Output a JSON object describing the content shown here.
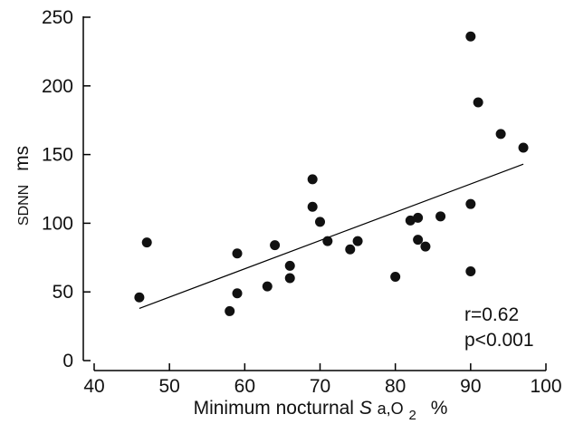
{
  "chart_data": {
    "type": "scatter",
    "xlabel": {
      "main": "Minimum nocturnal ",
      "symbol": "S",
      "subscript": "a,O",
      "subscript2": "2",
      "unit": "%"
    },
    "ylabel": {
      "main": "SDNN",
      "unit": "ms"
    },
    "xlim": [
      40,
      100
    ],
    "ylim": [
      0,
      250
    ],
    "x_ticks": [
      40,
      50,
      60,
      70,
      80,
      90,
      100
    ],
    "y_ticks": [
      0,
      50,
      100,
      150,
      200,
      250
    ],
    "points": [
      {
        "x": 46,
        "y": 46
      },
      {
        "x": 47,
        "y": 86
      },
      {
        "x": 58,
        "y": 36
      },
      {
        "x": 59,
        "y": 49
      },
      {
        "x": 59,
        "y": 78
      },
      {
        "x": 63,
        "y": 54
      },
      {
        "x": 64,
        "y": 84
      },
      {
        "x": 66,
        "y": 60
      },
      {
        "x": 66,
        "y": 69
      },
      {
        "x": 69,
        "y": 112
      },
      {
        "x": 69,
        "y": 132
      },
      {
        "x": 70,
        "y": 101
      },
      {
        "x": 71,
        "y": 87
      },
      {
        "x": 74,
        "y": 81
      },
      {
        "x": 75,
        "y": 87
      },
      {
        "x": 80,
        "y": 61
      },
      {
        "x": 82,
        "y": 102
      },
      {
        "x": 83,
        "y": 88
      },
      {
        "x": 83,
        "y": 104
      },
      {
        "x": 84,
        "y": 83
      },
      {
        "x": 86,
        "y": 105
      },
      {
        "x": 90,
        "y": 236
      },
      {
        "x": 90,
        "y": 114
      },
      {
        "x": 90,
        "y": 65
      },
      {
        "x": 91,
        "y": 188
      },
      {
        "x": 94,
        "y": 165
      },
      {
        "x": 97,
        "y": 155
      }
    ],
    "regression_line": {
      "x": [
        46,
        97
      ],
      "y": [
        38,
        143
      ]
    },
    "annotations": [
      "r=0.62",
      "p<0.001"
    ],
    "grid": false,
    "legend": "none"
  }
}
